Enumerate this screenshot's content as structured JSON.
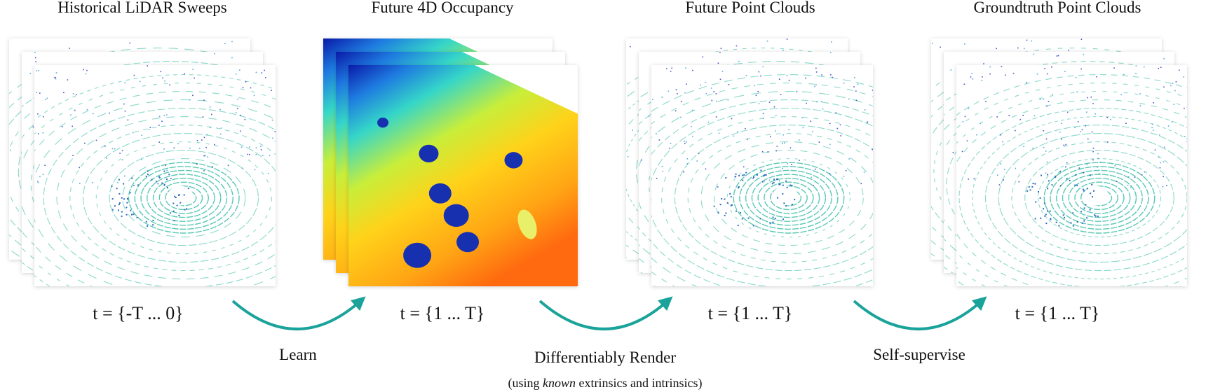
{
  "panels": [
    {
      "title": "Historical LiDAR Sweeps",
      "time_label": "t = {-T ... 0}"
    },
    {
      "title": "Future 4D Occupancy",
      "time_label": "t = {1 ... T}"
    },
    {
      "title": "Future Point Clouds",
      "time_label": "t = {1 ... T}"
    },
    {
      "title": "Groundtruth Point Clouds",
      "time_label": "t = {1 ... T}"
    }
  ],
  "transitions": [
    {
      "label": "Learn"
    },
    {
      "label": "Differentiably Render"
    },
    {
      "label": "Self-supervise"
    }
  ],
  "footnote": {
    "prefix": "(using ",
    "emphasis": "known",
    "suffix": " extrinsics and intrinsics)"
  }
}
